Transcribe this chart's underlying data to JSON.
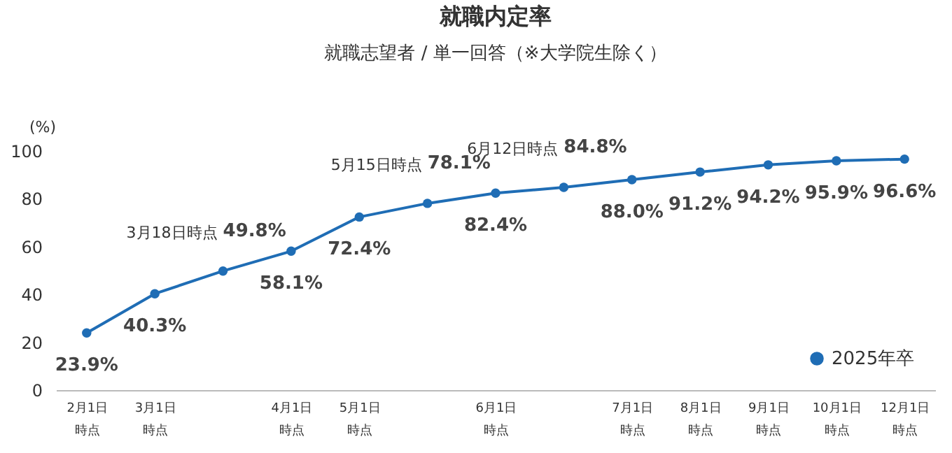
{
  "chart_data": {
    "type": "line",
    "title": "就職内定率",
    "subtitle": "就職志望者 / 単一回答（※大学院生除く）",
    "ylabel": "(%)",
    "categories": [
      "2月1日時点",
      "3月1日時点",
      null,
      "4月1日時点",
      "5月1日時点",
      null,
      "6月1日時点",
      null,
      "7月1日時点",
      "8月1日時点",
      "9月1日時点",
      "10月1日時点",
      "12月1日時点"
    ],
    "series": [
      {
        "name": "2025年卒",
        "color": "#1f6db5",
        "values": [
          23.9,
          40.3,
          49.8,
          58.1,
          72.4,
          78.1,
          82.4,
          84.8,
          88.0,
          91.2,
          94.2,
          95.9,
          96.6
        ]
      }
    ],
    "value_labels": [
      "23.9%",
      "40.3%",
      "49.8%",
      "58.1%",
      "72.4%",
      "78.1%",
      "82.4%",
      "84.8%",
      "88.0%",
      "91.2%",
      "94.2%",
      "95.9%",
      "96.6%"
    ],
    "ylim": [
      0,
      100
    ],
    "yticks": [
      0,
      20,
      40,
      60,
      80,
      100
    ],
    "annotations": [
      "3月18日時点",
      "5月15日時点",
      "6月12日時点"
    ],
    "marker": "circle",
    "grid": false,
    "legend": "bottom right"
  }
}
